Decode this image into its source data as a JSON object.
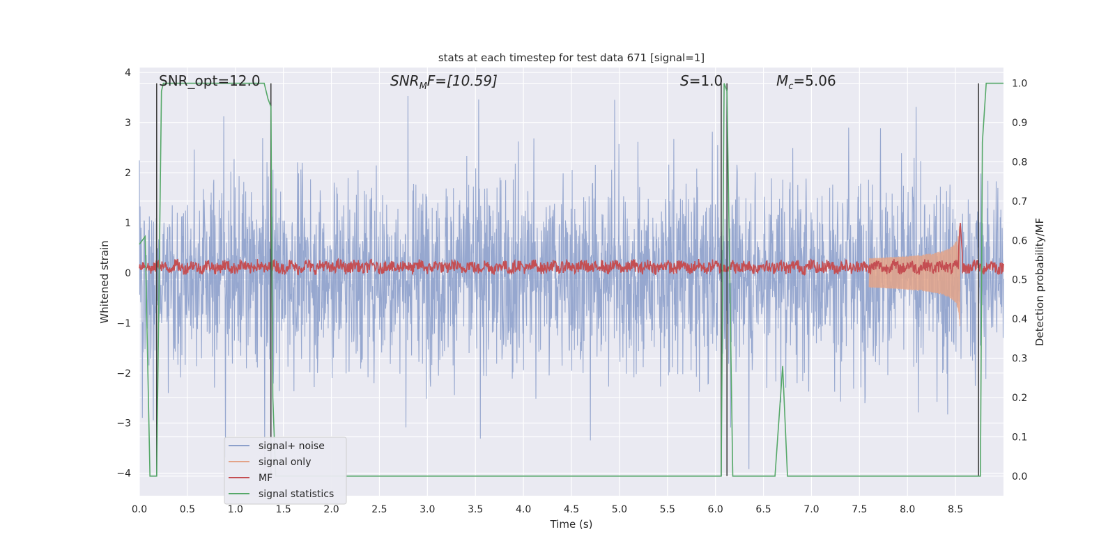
{
  "chart_data": {
    "type": "line",
    "title": "stats at each timestep for test data 671 [signal=1]",
    "xlabel": "Time (s)",
    "ylabel": "Whitened strain",
    "ylabel_right": "Detection probability/MF",
    "xlim": [
      0,
      9.0
    ],
    "ylim": [
      -4.45,
      4.1
    ],
    "ylim_right": [
      -0.05,
      1.04
    ],
    "xticks": [
      "0.0",
      "0.5",
      "1.0",
      "1.5",
      "2.0",
      "2.5",
      "3.0",
      "3.5",
      "4.0",
      "4.5",
      "5.0",
      "5.5",
      "6.0",
      "6.5",
      "7.0",
      "7.5",
      "8.0",
      "8.5"
    ],
    "yticks": [
      "−4",
      "−3",
      "−2",
      "−1",
      "0",
      "1",
      "2",
      "3",
      "4"
    ],
    "yticks_right": [
      "0.0",
      "0.1",
      "0.2",
      "0.3",
      "0.4",
      "0.5",
      "0.6",
      "0.7",
      "0.8",
      "0.9",
      "1.0"
    ],
    "grid": true,
    "legend_position": "lower-left",
    "colors": {
      "signal_noise": "#8da0cb",
      "signal_only": "#e3a388",
      "mf": "#c44e52",
      "signal_statistics": "#55a868",
      "vlines": "#404040",
      "axes_bg": "#eaeaf2",
      "grid": "#ffffff"
    },
    "annotations": {
      "snr_opt": "SNR_opt=12.0",
      "snr_mf_label": "SNR",
      "snr_mf_sub": "M",
      "snr_mf_rest": "F=[10.59]",
      "s_label": "S",
      "s_rest": "=1.0",
      "mc_label": "M",
      "mc_sub": "c",
      "mc_rest": "=5.06"
    },
    "series": [
      {
        "name": "signal+ noise",
        "description": "whitened strain noise, roughly ±2.5 with peaks to ±3.8"
      },
      {
        "name": "signal only",
        "inspiral_start": 7.6,
        "merger_time": 8.55,
        "peak_amplitude": 1.15
      },
      {
        "name": "MF",
        "baseline": 0.12,
        "noise_amplitude": 0.12,
        "peak_time": 8.55,
        "peak_value": 1.0
      },
      {
        "name": "signal statistics",
        "x": [
          0.0,
          0.06,
          0.11,
          0.13,
          0.18,
          0.23,
          0.25,
          0.3,
          0.6,
          1.0,
          1.3,
          1.34,
          1.37,
          1.39,
          1.42,
          1.5,
          2.0,
          3.0,
          4.0,
          5.0,
          6.0,
          6.06,
          6.09,
          6.12,
          6.18,
          6.62,
          6.7,
          6.75,
          7.0,
          8.0,
          8.76,
          8.78,
          8.82,
          8.9,
          9.0
        ],
        "y": [
          0.59,
          0.61,
          0.0,
          0.0,
          0.0,
          0.98,
          1.0,
          1.0,
          1.0,
          1.0,
          1.0,
          0.96,
          0.94,
          0.2,
          0.0,
          0.0,
          0.0,
          0.0,
          0.0,
          0.0,
          0.0,
          0.0,
          1.0,
          0.98,
          0.0,
          0.0,
          0.28,
          0.0,
          0.0,
          0.0,
          0.0,
          0.85,
          1.0,
          1.0,
          1.0
        ]
      }
    ],
    "vlines": [
      0.18,
      1.37,
      6.06,
      6.12,
      8.74
    ]
  },
  "legend": {
    "items": [
      "signal+ noise",
      "signal only",
      "MF",
      "signal statistics"
    ]
  }
}
